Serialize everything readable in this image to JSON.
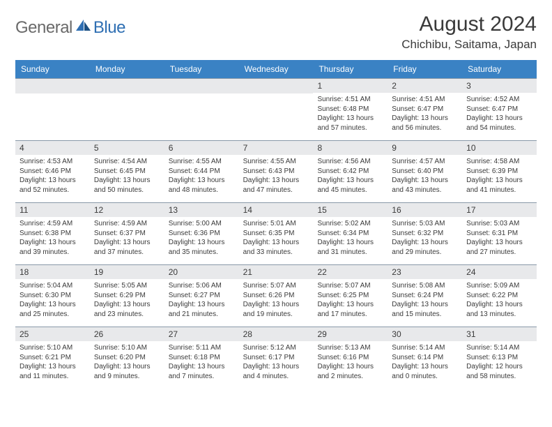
{
  "logo": {
    "part1": "General",
    "part2": "Blue"
  },
  "title": "August 2024",
  "location": "Chichibu, Saitama, Japan",
  "colors": {
    "header_bg": "#3a82c4",
    "daynum_bg": "#e8e9eb",
    "text": "#3a3a3a",
    "logo_gray": "#6a6a6a",
    "logo_blue": "#2f6fb3",
    "row_border": "#8898a8"
  },
  "weekdays": [
    "Sunday",
    "Monday",
    "Tuesday",
    "Wednesday",
    "Thursday",
    "Friday",
    "Saturday"
  ],
  "weeks": [
    [
      {
        "n": "",
        "sr": "",
        "ss": "",
        "dl": ""
      },
      {
        "n": "",
        "sr": "",
        "ss": "",
        "dl": ""
      },
      {
        "n": "",
        "sr": "",
        "ss": "",
        "dl": ""
      },
      {
        "n": "",
        "sr": "",
        "ss": "",
        "dl": ""
      },
      {
        "n": "1",
        "sr": "Sunrise: 4:51 AM",
        "ss": "Sunset: 6:48 PM",
        "dl": "Daylight: 13 hours and 57 minutes."
      },
      {
        "n": "2",
        "sr": "Sunrise: 4:51 AM",
        "ss": "Sunset: 6:47 PM",
        "dl": "Daylight: 13 hours and 56 minutes."
      },
      {
        "n": "3",
        "sr": "Sunrise: 4:52 AM",
        "ss": "Sunset: 6:47 PM",
        "dl": "Daylight: 13 hours and 54 minutes."
      }
    ],
    [
      {
        "n": "4",
        "sr": "Sunrise: 4:53 AM",
        "ss": "Sunset: 6:46 PM",
        "dl": "Daylight: 13 hours and 52 minutes."
      },
      {
        "n": "5",
        "sr": "Sunrise: 4:54 AM",
        "ss": "Sunset: 6:45 PM",
        "dl": "Daylight: 13 hours and 50 minutes."
      },
      {
        "n": "6",
        "sr": "Sunrise: 4:55 AM",
        "ss": "Sunset: 6:44 PM",
        "dl": "Daylight: 13 hours and 48 minutes."
      },
      {
        "n": "7",
        "sr": "Sunrise: 4:55 AM",
        "ss": "Sunset: 6:43 PM",
        "dl": "Daylight: 13 hours and 47 minutes."
      },
      {
        "n": "8",
        "sr": "Sunrise: 4:56 AM",
        "ss": "Sunset: 6:42 PM",
        "dl": "Daylight: 13 hours and 45 minutes."
      },
      {
        "n": "9",
        "sr": "Sunrise: 4:57 AM",
        "ss": "Sunset: 6:40 PM",
        "dl": "Daylight: 13 hours and 43 minutes."
      },
      {
        "n": "10",
        "sr": "Sunrise: 4:58 AM",
        "ss": "Sunset: 6:39 PM",
        "dl": "Daylight: 13 hours and 41 minutes."
      }
    ],
    [
      {
        "n": "11",
        "sr": "Sunrise: 4:59 AM",
        "ss": "Sunset: 6:38 PM",
        "dl": "Daylight: 13 hours and 39 minutes."
      },
      {
        "n": "12",
        "sr": "Sunrise: 4:59 AM",
        "ss": "Sunset: 6:37 PM",
        "dl": "Daylight: 13 hours and 37 minutes."
      },
      {
        "n": "13",
        "sr": "Sunrise: 5:00 AM",
        "ss": "Sunset: 6:36 PM",
        "dl": "Daylight: 13 hours and 35 minutes."
      },
      {
        "n": "14",
        "sr": "Sunrise: 5:01 AM",
        "ss": "Sunset: 6:35 PM",
        "dl": "Daylight: 13 hours and 33 minutes."
      },
      {
        "n": "15",
        "sr": "Sunrise: 5:02 AM",
        "ss": "Sunset: 6:34 PM",
        "dl": "Daylight: 13 hours and 31 minutes."
      },
      {
        "n": "16",
        "sr": "Sunrise: 5:03 AM",
        "ss": "Sunset: 6:32 PM",
        "dl": "Daylight: 13 hours and 29 minutes."
      },
      {
        "n": "17",
        "sr": "Sunrise: 5:03 AM",
        "ss": "Sunset: 6:31 PM",
        "dl": "Daylight: 13 hours and 27 minutes."
      }
    ],
    [
      {
        "n": "18",
        "sr": "Sunrise: 5:04 AM",
        "ss": "Sunset: 6:30 PM",
        "dl": "Daylight: 13 hours and 25 minutes."
      },
      {
        "n": "19",
        "sr": "Sunrise: 5:05 AM",
        "ss": "Sunset: 6:29 PM",
        "dl": "Daylight: 13 hours and 23 minutes."
      },
      {
        "n": "20",
        "sr": "Sunrise: 5:06 AM",
        "ss": "Sunset: 6:27 PM",
        "dl": "Daylight: 13 hours and 21 minutes."
      },
      {
        "n": "21",
        "sr": "Sunrise: 5:07 AM",
        "ss": "Sunset: 6:26 PM",
        "dl": "Daylight: 13 hours and 19 minutes."
      },
      {
        "n": "22",
        "sr": "Sunrise: 5:07 AM",
        "ss": "Sunset: 6:25 PM",
        "dl": "Daylight: 13 hours and 17 minutes."
      },
      {
        "n": "23",
        "sr": "Sunrise: 5:08 AM",
        "ss": "Sunset: 6:24 PM",
        "dl": "Daylight: 13 hours and 15 minutes."
      },
      {
        "n": "24",
        "sr": "Sunrise: 5:09 AM",
        "ss": "Sunset: 6:22 PM",
        "dl": "Daylight: 13 hours and 13 minutes."
      }
    ],
    [
      {
        "n": "25",
        "sr": "Sunrise: 5:10 AM",
        "ss": "Sunset: 6:21 PM",
        "dl": "Daylight: 13 hours and 11 minutes."
      },
      {
        "n": "26",
        "sr": "Sunrise: 5:10 AM",
        "ss": "Sunset: 6:20 PM",
        "dl": "Daylight: 13 hours and 9 minutes."
      },
      {
        "n": "27",
        "sr": "Sunrise: 5:11 AM",
        "ss": "Sunset: 6:18 PM",
        "dl": "Daylight: 13 hours and 7 minutes."
      },
      {
        "n": "28",
        "sr": "Sunrise: 5:12 AM",
        "ss": "Sunset: 6:17 PM",
        "dl": "Daylight: 13 hours and 4 minutes."
      },
      {
        "n": "29",
        "sr": "Sunrise: 5:13 AM",
        "ss": "Sunset: 6:16 PM",
        "dl": "Daylight: 13 hours and 2 minutes."
      },
      {
        "n": "30",
        "sr": "Sunrise: 5:14 AM",
        "ss": "Sunset: 6:14 PM",
        "dl": "Daylight: 13 hours and 0 minutes."
      },
      {
        "n": "31",
        "sr": "Sunrise: 5:14 AM",
        "ss": "Sunset: 6:13 PM",
        "dl": "Daylight: 12 hours and 58 minutes."
      }
    ]
  ]
}
